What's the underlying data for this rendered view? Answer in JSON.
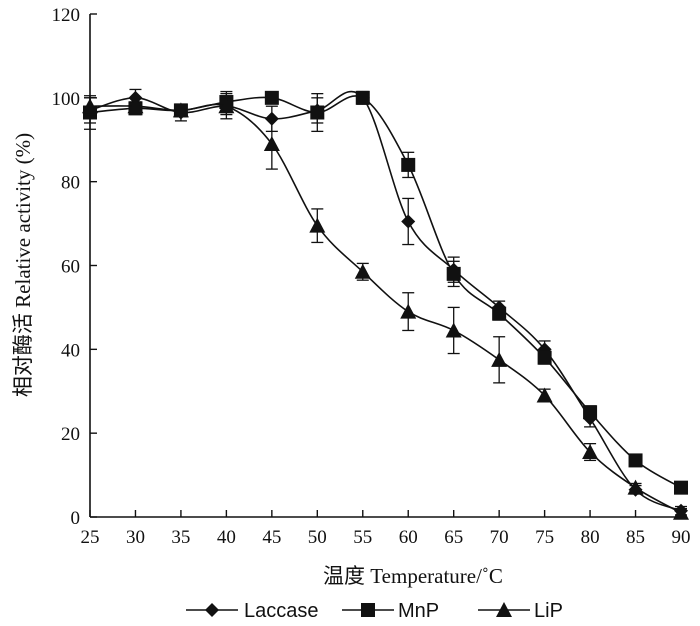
{
  "chart_data": {
    "type": "line",
    "xlabel": "温度 Temperature/˚C",
    "ylabel": "相对酶活 Relative activity (%)",
    "x": [
      25,
      30,
      35,
      40,
      45,
      50,
      55,
      60,
      65,
      70,
      75,
      80,
      85,
      90
    ],
    "xticks": [
      "25",
      "30",
      "35",
      "40",
      "45",
      "50",
      "55",
      "60",
      "65",
      "70",
      "75",
      "80",
      "85",
      "90"
    ],
    "yticks": [
      "0",
      "20",
      "40",
      "60",
      "80",
      "100",
      "120"
    ],
    "xlim": [
      25,
      90
    ],
    "ylim": [
      0,
      120
    ],
    "legend_position": "bottom",
    "series": [
      {
        "name": "Laccase",
        "marker": "diamond",
        "values": [
          97,
          100,
          96.5,
          98,
          95,
          97,
          100,
          70.5,
          59,
          50,
          40,
          23.5,
          6.5,
          1.5
        ],
        "errors": [
          3,
          2,
          2,
          3,
          3,
          3,
          1,
          5.5,
          3,
          1.5,
          2,
          2,
          1,
          1
        ]
      },
      {
        "name": "MnP",
        "marker": "square",
        "values": [
          96.5,
          97.5,
          97,
          99,
          100,
          96.5,
          100,
          84,
          58,
          48.5,
          38,
          25,
          13.5,
          7
        ],
        "errors": [
          4,
          1.5,
          1,
          2.5,
          1,
          4.5,
          1.5,
          3,
          3,
          1.5,
          1.5,
          1.5,
          1,
          1
        ]
      },
      {
        "name": "LiP",
        "marker": "triangle",
        "values": [
          98,
          98,
          97,
          98,
          89,
          69.5,
          58.5,
          49,
          44.5,
          37.5,
          29,
          15.5,
          7,
          1
        ],
        "errors": [
          2,
          1,
          1.5,
          2,
          6,
          4,
          2,
          4.5,
          5.5,
          5.5,
          1.5,
          2,
          1,
          1
        ]
      }
    ]
  }
}
